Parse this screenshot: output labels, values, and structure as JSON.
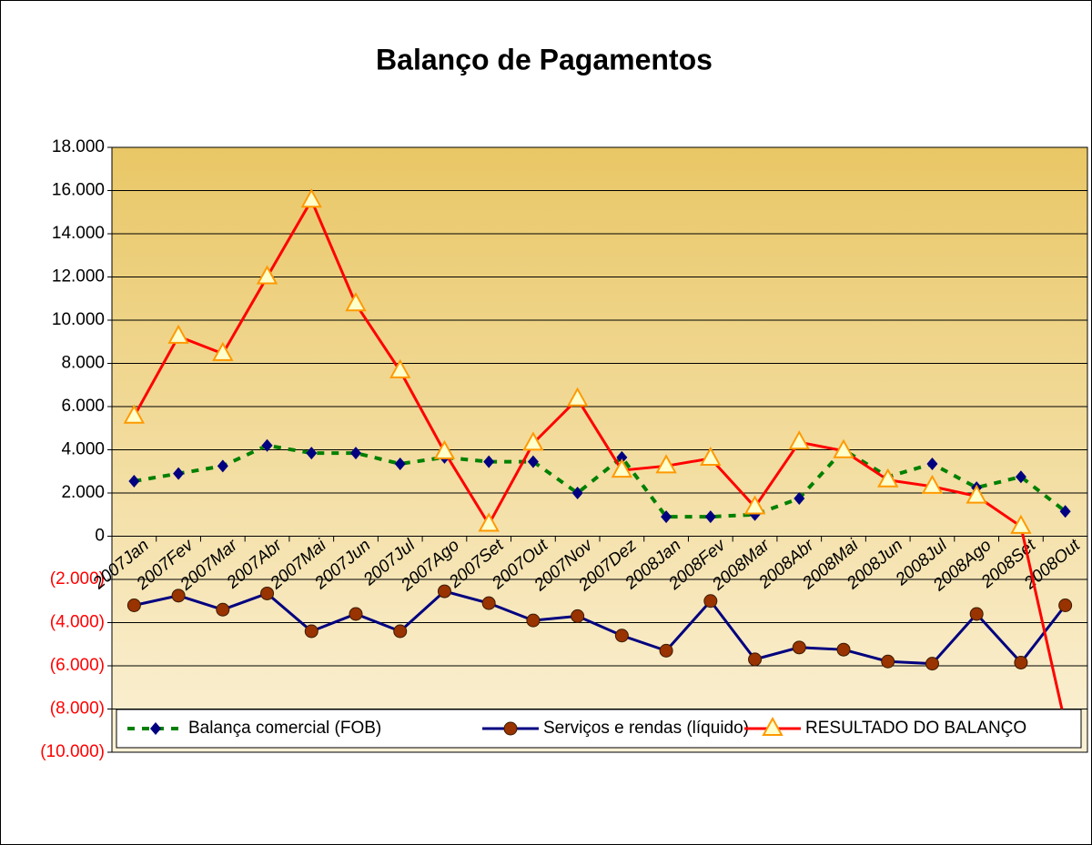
{
  "chart_data": {
    "type": "line",
    "title": "Balanço de Pagamentos",
    "categories": [
      "2007Jan",
      "2007Fev",
      "2007Mar",
      "2007Abr",
      "2007Mai",
      "2007Jun",
      "2007Jul",
      "2007Ago",
      "2007Set",
      "2007Out",
      "2007Nov",
      "2007Dez",
      "2008Jan",
      "2008Fev",
      "2008Mar",
      "2008Abr",
      "2008Mai",
      "2008Jun",
      "2008Jul",
      "2008Ago",
      "2008Set",
      "2008Out"
    ],
    "series": [
      {
        "name": "Balança comercial (FOB)",
        "color": "#008000",
        "marker_color": "#000080",
        "marker": "diamond",
        "dash": true,
        "values": [
          2550,
          2900,
          3250,
          4200,
          3850,
          3850,
          3350,
          3650,
          3450,
          3450,
          2000,
          3650,
          900,
          900,
          1000,
          1750,
          4000,
          2750,
          3350,
          2250,
          2750,
          1150
        ]
      },
      {
        "name": "Serviços e rendas (líquido)",
        "color": "#000080",
        "marker_color": "#993300",
        "marker": "circle",
        "dash": false,
        "values": [
          -3200,
          -2750,
          -3400,
          -2650,
          -4400,
          -3600,
          -4400,
          -2550,
          -3100,
          -3900,
          -3700,
          -4600,
          -5300,
          -3000,
          -5700,
          -5150,
          -5250,
          -5800,
          -5900,
          -3600,
          -5850,
          -3200
        ]
      },
      {
        "name": "RESULTADO DO BALANÇO",
        "color": "#ff0000",
        "marker_color": "#ffffcc",
        "marker_stroke": "#ff9900",
        "marker": "triangle",
        "dash": false,
        "values": [
          5550,
          9250,
          8450,
          12000,
          15550,
          10750,
          7650,
          3900,
          550,
          4300,
          6350,
          3050,
          3250,
          3600,
          1350,
          4350,
          3950,
          2600,
          2300,
          1850,
          450,
          -8700
        ]
      }
    ],
    "ylim": [
      -10000,
      18000
    ],
    "yticks": [
      {
        "value": -10000,
        "label": "(10.000)"
      },
      {
        "value": -8000,
        "label": "(8.000)"
      },
      {
        "value": -6000,
        "label": "(6.000)"
      },
      {
        "value": -4000,
        "label": "(4.000)"
      },
      {
        "value": -2000,
        "label": "(2.000)"
      },
      0,
      {
        "value": 2000,
        "label": "2.000"
      },
      {
        "value": 4000,
        "label": "4.000"
      },
      {
        "value": 6000,
        "label": "6.000"
      },
      {
        "value": 8000,
        "label": "8.000"
      },
      {
        "value": 10000,
        "label": "10.000"
      },
      {
        "value": 12000,
        "label": "12.000"
      },
      {
        "value": 14000,
        "label": "14.000"
      },
      {
        "value": 16000,
        "label": "16.000"
      },
      {
        "value": 18000,
        "label": "18.000"
      }
    ],
    "negative_tick_color": "#ff0000",
    "grid": true,
    "legend": "bottom"
  }
}
